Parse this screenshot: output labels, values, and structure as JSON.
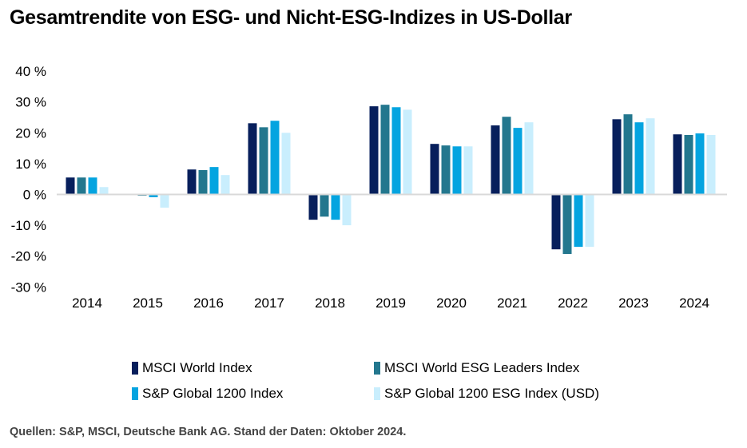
{
  "title": "Gesamtrendite von ESG- und Nicht-ESG-Indizes in US-Dollar",
  "source": "Quellen: S&P, MSCI, Deutsche Bank AG. Stand der Daten: Oktober 2024.",
  "chart_data": {
    "type": "bar",
    "title": "Gesamtrendite von ESG- und Nicht-ESG-Indizes in US-Dollar",
    "categories": [
      "2014",
      "2015",
      "2016",
      "2017",
      "2018",
      "2019",
      "2020",
      "2021",
      "2022",
      "2023",
      "2024"
    ],
    "ylim": [
      -30,
      40
    ],
    "yticks": [
      40,
      30,
      20,
      10,
      0,
      -10,
      -20,
      -30
    ],
    "ytick_labels": [
      "40 %",
      "30 %",
      "20 %",
      "10 %",
      "0 %",
      "-10 %",
      "-20 %",
      "-30 %"
    ],
    "grid": false,
    "legend_placement": "bottom",
    "series": [
      {
        "name": "MSCI World Index",
        "color": "#071f5c",
        "values": [
          5.5,
          0.0,
          8.1,
          23.1,
          -8.2,
          28.6,
          16.4,
          22.4,
          -17.8,
          24.4,
          19.5
        ]
      },
      {
        "name": "MSCI World ESG Leaders Index",
        "color": "#23778e",
        "values": [
          5.5,
          -0.4,
          7.9,
          21.8,
          -7.2,
          29.1,
          15.9,
          25.2,
          -19.3,
          26.0,
          19.3
        ]
      },
      {
        "name": "S&P Global 1200 Index",
        "color": "#04a4e0",
        "values": [
          5.5,
          -0.9,
          8.9,
          23.9,
          -8.2,
          28.3,
          15.6,
          21.6,
          -17.0,
          23.4,
          19.8
        ]
      },
      {
        "name": "S&P Global 1200 ESG Index (USD)",
        "color": "#c9eefd",
        "values": [
          2.4,
          -4.3,
          6.3,
          20.0,
          -10.0,
          27.5,
          15.6,
          23.4,
          -17.0,
          24.7,
          19.3
        ]
      }
    ]
  }
}
